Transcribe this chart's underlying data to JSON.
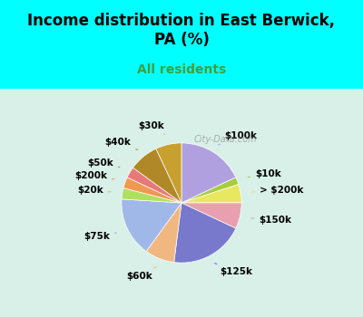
{
  "title": "Income distribution in East Berwick,\nPA (%)",
  "subtitle": "All residents",
  "labels": [
    "$100k",
    "$10k",
    "> $200k",
    "$150k",
    "$125k",
    "$60k",
    "$75k",
    "$20k",
    "$200k",
    "$50k",
    "$40k",
    "$30k"
  ],
  "sizes": [
    18,
    2,
    5,
    7,
    20,
    8,
    16,
    3,
    3,
    3,
    8,
    7
  ],
  "colors": [
    "#b0a8e0",
    "#c8e868",
    "#f0f080",
    "#f0b8c0",
    "#8080d0",
    "#f0c090",
    "#a8c8f0",
    "#c0e890",
    "#f0a060",
    "#f08888",
    "#c09830",
    "#c09830"
  ],
  "colors2": [
    "#a89cd8",
    "#a0cc40",
    "#e8e870",
    "#e8a0b0",
    "#7070c8",
    "#e8b080",
    "#98b8e8",
    "#b0e080",
    "#e89050",
    "#e87070",
    "#b88820",
    "#c8a030"
  ],
  "watermark": "City-Data.com",
  "bg_top": "#00ffff",
  "bg_chart": "#e8f8e8",
  "title_color": "#000000",
  "subtitle_color": "#40a040",
  "startangle": 90
}
